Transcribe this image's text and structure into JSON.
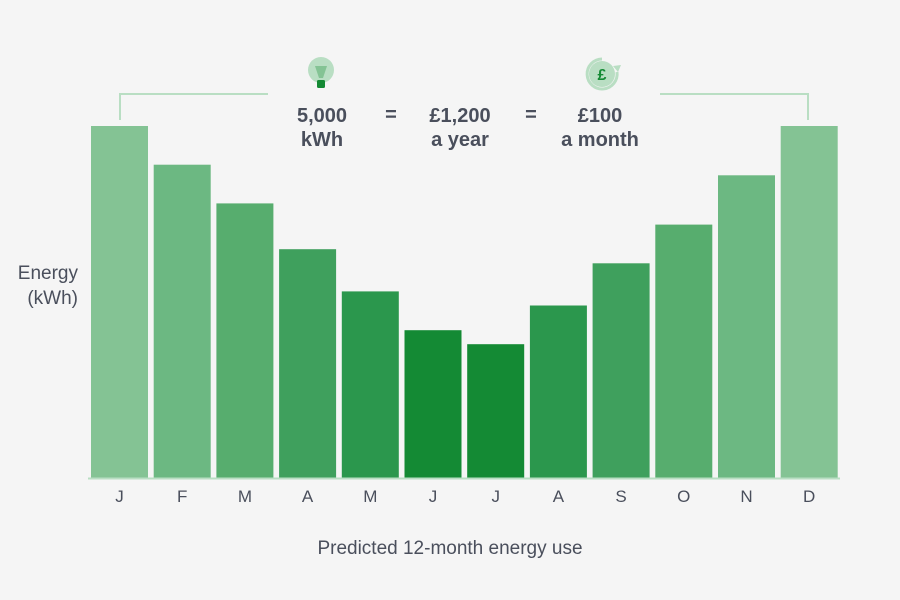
{
  "summary": {
    "energy_value": "5,000",
    "energy_unit": "kWh",
    "equals": "=",
    "yearly_cost": "£1,200",
    "yearly_period": "a year",
    "monthly_cost": "£100",
    "monthly_period": "a month"
  },
  "icons": {
    "left": "lightbulb-icon",
    "right": "pound-cycle-icon",
    "pound_symbol": "£"
  },
  "colors": {
    "axis": "#b9dec3",
    "text": "#4a4f5c",
    "bar_palette": [
      "#84c394",
      "#6cb882",
      "#57ad6e",
      "#3fa05d",
      "#2b974d",
      "#148a34"
    ]
  },
  "chart_data": {
    "type": "bar",
    "title": "",
    "xlabel": "Predicted 12-month energy use",
    "ylabel": "Energy (kWh)",
    "ylabel_lines": [
      "Energy",
      "(kWh)"
    ],
    "categories": [
      "J",
      "F",
      "M",
      "A",
      "M",
      "J",
      "J",
      "A",
      "S",
      "O",
      "N",
      "D"
    ],
    "values": [
      100,
      89,
      78,
      65,
      53,
      42,
      38,
      49,
      61,
      72,
      86,
      100
    ],
    "ylim": [
      0,
      100
    ],
    "yticks": "none",
    "grid": false,
    "legend": "none"
  }
}
